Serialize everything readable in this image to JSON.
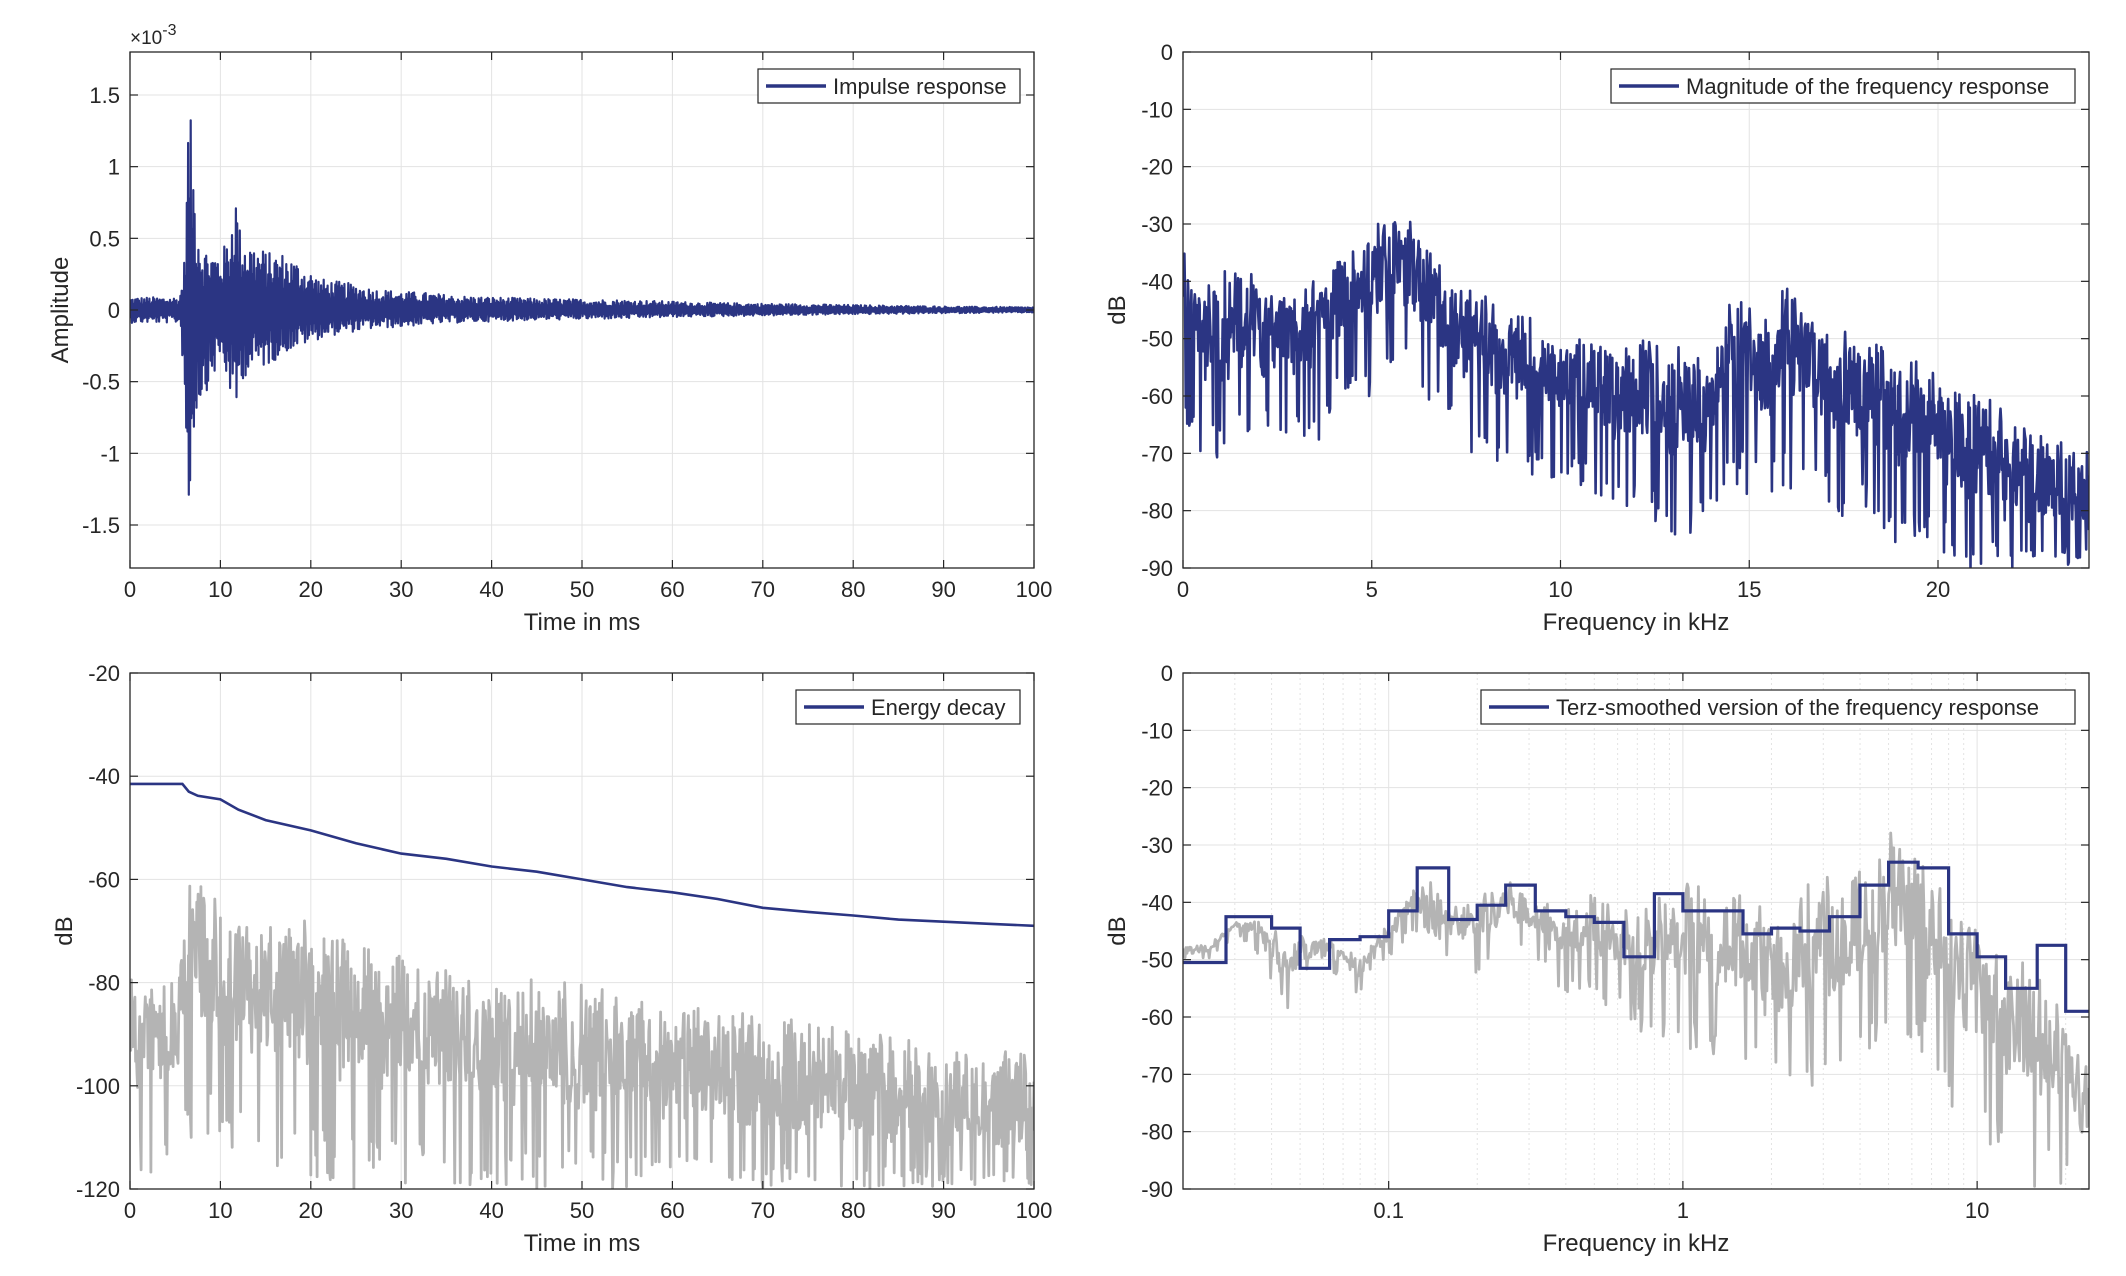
{
  "figure": {
    "colors": {
      "series_main": "#2b3583",
      "series_gray": "#b4b4b4",
      "grid": "#e3e3e3",
      "axis": "#262626",
      "background": "#ffffff"
    }
  },
  "chart_data": [
    {
      "id": "impulse",
      "type": "line",
      "title": "",
      "xlabel": "Time in ms",
      "ylabel": "Amplitude",
      "exponent_label": "×10",
      "exponent_power": "-3",
      "xlim": [
        0,
        100
      ],
      "ylim": [
        -1.8,
        1.8
      ],
      "xscale": "linear",
      "xticks": [
        0,
        10,
        20,
        30,
        40,
        50,
        60,
        70,
        80,
        90,
        100
      ],
      "xticklabels": [
        "0",
        "10",
        "20",
        "30",
        "40",
        "50",
        "60",
        "70",
        "80",
        "90",
        "100"
      ],
      "yticks": [
        -1.5,
        -1,
        -0.5,
        0,
        0.5,
        1,
        1.5
      ],
      "yticklabels": [
        "-1.5",
        "-1",
        "-0.5",
        "0",
        "0.5",
        "1",
        "1.5"
      ],
      "grid": true,
      "legend_position": "top-right",
      "legend": [
        "Impulse response"
      ],
      "series": [
        {
          "name": "Impulse response",
          "color": "#2b3583",
          "style": "envelope",
          "x": [
            0,
            5.5,
            6.0,
            6.3,
            6.5,
            6.8,
            7.3,
            8.0,
            9.0,
            10.0,
            11.0,
            11.6,
            12.2,
            13.0,
            14.0,
            15.5,
            17.0,
            19.0,
            21.0,
            23.0,
            25.0,
            27.0,
            30.0,
            33.0,
            36.0,
            40.0,
            45.0,
            50.0,
            55.0,
            60.0,
            65.0,
            70.0,
            75.0,
            80.0,
            85.0,
            90.0,
            95.0,
            100.0
          ],
          "upper": [
            0.09,
            0.09,
            0.35,
            1.0,
            1.52,
            1.25,
            0.78,
            0.45,
            0.42,
            0.4,
            0.52,
            0.9,
            0.55,
            0.5,
            0.45,
            0.4,
            0.4,
            0.32,
            0.22,
            0.2,
            0.18,
            0.15,
            0.13,
            0.12,
            0.1,
            0.09,
            0.08,
            0.075,
            0.07,
            0.06,
            0.05,
            0.045,
            0.04,
            0.035,
            0.03,
            0.025,
            0.022,
            0.02
          ],
          "lower": [
            -0.09,
            -0.09,
            -0.5,
            -1.3,
            -1.62,
            -1.1,
            -0.72,
            -0.62,
            -0.5,
            -0.35,
            -0.55,
            -0.86,
            -0.5,
            -0.45,
            -0.42,
            -0.38,
            -0.3,
            -0.25,
            -0.2,
            -0.17,
            -0.15,
            -0.13,
            -0.12,
            -0.1,
            -0.09,
            -0.08,
            -0.07,
            -0.065,
            -0.06,
            -0.05,
            -0.045,
            -0.04,
            -0.035,
            -0.03,
            -0.027,
            -0.023,
            -0.02,
            -0.018
          ]
        }
      ]
    },
    {
      "id": "magnitude",
      "type": "line",
      "title": "",
      "xlabel": "Frequency in kHz",
      "ylabel": "dB",
      "xlim": [
        0,
        24
      ],
      "ylim": [
        -90,
        0
      ],
      "xscale": "linear",
      "xticks": [
        0,
        5,
        10,
        15,
        20
      ],
      "xticklabels": [
        "0",
        "5",
        "10",
        "15",
        "20"
      ],
      "yticks": [
        0,
        -10,
        -20,
        -30,
        -40,
        -50,
        -60,
        -70,
        -80,
        -90
      ],
      "yticklabels": [
        "0",
        "-10",
        "-20",
        "-30",
        "-40",
        "-50",
        "-60",
        "-70",
        "-80",
        "-90"
      ],
      "grid": true,
      "legend_position": "top-right",
      "legend": [
        "Magnitude of the frequency response"
      ],
      "series": [
        {
          "name": "Magnitude of the frequency response",
          "color": "#2b3583",
          "style": "noisy-trace",
          "x": [
            0,
            0.5,
            1.0,
            1.5,
            2.0,
            2.5,
            3.0,
            3.5,
            4.0,
            4.5,
            5.0,
            5.5,
            6.0,
            6.5,
            7.0,
            7.5,
            8.0,
            8.5,
            9.0,
            9.5,
            10.0,
            10.5,
            11.0,
            11.5,
            12.0,
            12.5,
            13.0,
            13.5,
            14.0,
            14.5,
            15.0,
            15.5,
            16.0,
            16.5,
            17.0,
            17.5,
            18.0,
            18.5,
            19.0,
            19.5,
            20.0,
            20.5,
            21.0,
            21.5,
            22.0,
            22.5,
            23.0,
            23.5,
            24.0
          ],
          "upper": [
            -33,
            -40,
            -38,
            -37,
            -38,
            -40,
            -42,
            -40,
            -35,
            -33,
            -31,
            -27,
            -30,
            -33,
            -38,
            -40,
            -43,
            -45,
            -44,
            -47,
            -50,
            -50,
            -49,
            -52,
            -48,
            -50,
            -52,
            -52,
            -55,
            -42,
            -43,
            -45,
            -41,
            -43,
            -44,
            -48,
            -48,
            -50,
            -54,
            -52,
            -56,
            -57,
            -59,
            -62,
            -63,
            -65,
            -66,
            -67,
            -70
          ],
          "lower": [
            -66,
            -70,
            -72,
            -68,
            -70,
            -66,
            -68,
            -70,
            -62,
            -60,
            -62,
            -55,
            -58,
            -63,
            -66,
            -70,
            -72,
            -73,
            -74,
            -74,
            -76,
            -76,
            -78,
            -80,
            -80,
            -82,
            -85,
            -85,
            -82,
            -75,
            -78,
            -80,
            -76,
            -78,
            -79,
            -82,
            -82,
            -84,
            -86,
            -86,
            -88,
            -90,
            -90,
            -90,
            -90,
            -90,
            -90,
            -90,
            -90
          ],
          "mid": [
            -48,
            -54,
            -55,
            -52,
            -54,
            -53,
            -55,
            -54,
            -48,
            -46,
            -44,
            -40,
            -43,
            -47,
            -51,
            -54,
            -57,
            -58,
            -58,
            -60,
            -62,
            -62,
            -63,
            -65,
            -63,
            -65,
            -68,
            -68,
            -68,
            -57,
            -59,
            -61,
            -57,
            -59,
            -60,
            -64,
            -64,
            -66,
            -70,
            -68,
            -71,
            -73,
            -76,
            -78,
            -80,
            -80,
            -80,
            -80,
            -82
          ]
        }
      ]
    },
    {
      "id": "energy",
      "type": "line",
      "title": "",
      "xlabel": "Time in ms",
      "ylabel": "dB",
      "xlim": [
        0,
        100
      ],
      "ylim": [
        -120,
        -20
      ],
      "xscale": "linear",
      "xticks": [
        0,
        10,
        20,
        30,
        40,
        50,
        60,
        70,
        80,
        90,
        100
      ],
      "xticklabels": [
        "0",
        "10",
        "20",
        "30",
        "40",
        "50",
        "60",
        "70",
        "80",
        "90",
        "100"
      ],
      "yticks": [
        -20,
        -40,
        -60,
        -80,
        -100,
        -120
      ],
      "yticklabels": [
        "-20",
        "-40",
        "-60",
        "-80",
        "-100",
        "-120"
      ],
      "grid": true,
      "legend_position": "top-right",
      "legend": [
        "Energy decay"
      ],
      "series": [
        {
          "name": "Energy decay",
          "color": "#2b3583",
          "style": "line",
          "x": [
            0,
            5.8,
            6.5,
            7.5,
            10,
            12,
            15,
            20,
            25,
            30,
            35,
            40,
            45,
            50,
            55,
            60,
            65,
            70,
            75,
            80,
            85,
            90,
            95,
            100
          ],
          "y": [
            -41.5,
            -41.5,
            -43.0,
            -43.8,
            -44.5,
            -46.5,
            -48.5,
            -50.5,
            -53.0,
            -55.0,
            -56.0,
            -57.5,
            -58.5,
            -60.0,
            -61.5,
            -62.5,
            -63.8,
            -65.5,
            -66.3,
            -67.0,
            -67.8,
            -68.2,
            -68.6,
            -69.0
          ]
        },
        {
          "name": "",
          "color": "#b4b4b4",
          "style": "noisy-trace",
          "x": [
            0,
            5,
            6.0,
            6.5,
            8,
            10,
            15,
            20,
            25,
            30,
            35,
            40,
            45,
            50,
            55,
            60,
            65,
            70,
            75,
            80,
            85,
            90,
            95,
            100
          ],
          "upper": [
            -80,
            -80,
            -70,
            -56,
            -62,
            -65,
            -68,
            -68,
            -72,
            -75,
            -76,
            -78,
            -80,
            -80,
            -82,
            -83,
            -85,
            -86,
            -88,
            -90,
            -91,
            -93,
            -94,
            -94
          ],
          "lower": [
            -118,
            -118,
            -112,
            -110,
            -110,
            -112,
            -116,
            -118,
            -120,
            -120,
            -120,
            -120,
            -120,
            -120,
            -120,
            -120,
            -120,
            -120,
            -120,
            -120,
            -120,
            -120,
            -120,
            -120
          ],
          "mid": [
            -95,
            -95,
            -88,
            -82,
            -84,
            -86,
            -89,
            -91,
            -94,
            -96,
            -97,
            -99,
            -100,
            -101,
            -102,
            -103,
            -104,
            -106,
            -107,
            -108,
            -109,
            -110,
            -110,
            -111
          ]
        }
      ]
    },
    {
      "id": "terz",
      "type": "line",
      "title": "",
      "xlabel": "Frequency in kHz",
      "ylabel": "dB",
      "xlim": [
        0.02,
        24
      ],
      "ylim": [
        -90,
        0
      ],
      "xscale": "log",
      "xticks": [
        0.1,
        1,
        10
      ],
      "xticklabels": [
        "0.1",
        "1",
        "10"
      ],
      "yticks": [
        0,
        -10,
        -20,
        -30,
        -40,
        -50,
        -60,
        -70,
        -80,
        -90
      ],
      "yticklabels": [
        "0",
        "-10",
        "-20",
        "-30",
        "-40",
        "-50",
        "-60",
        "-70",
        "-80",
        "-90"
      ],
      "grid": true,
      "legend_position": "top-right",
      "legend": [
        "Terz-smoothed version of the frequency response"
      ],
      "series": [
        {
          "name": "",
          "color": "#b4b4b4",
          "style": "noisy-trace",
          "x": [
            0.02,
            0.025,
            0.03,
            0.035,
            0.04,
            0.045,
            0.05,
            0.06,
            0.07,
            0.08,
            0.09,
            0.1,
            0.12,
            0.14,
            0.16,
            0.18,
            0.2,
            0.25,
            0.3,
            0.35,
            0.4,
            0.5,
            0.6,
            0.7,
            0.8,
            1.0,
            1.2,
            1.5,
            2.0,
            2.5,
            3.0,
            3.5,
            4.0,
            4.5,
            5.0,
            5.5,
            6.0,
            7.0,
            8.0,
            9.0,
            10.0,
            12.0,
            14.0,
            16.0,
            18.0,
            20.0,
            22.0,
            24.0
          ],
          "upper": [
            -48,
            -47,
            -43,
            -43,
            -44,
            -48,
            -46,
            -46,
            -47,
            -50,
            -46,
            -44,
            -38,
            -36,
            -41,
            -40,
            -38,
            -36,
            -38,
            -40,
            -41,
            -38,
            -42,
            -38,
            -39,
            -36,
            -38,
            -38,
            -42,
            -38,
            -36,
            -36,
            -34,
            -30,
            -27,
            -25,
            -28,
            -33,
            -38,
            -40,
            -42,
            -45,
            -48,
            -50,
            -55,
            -60,
            -65,
            -70
          ],
          "lower": [
            -50,
            -50,
            -46,
            -48,
            -55,
            -59,
            -53,
            -52,
            -54,
            -57,
            -50,
            -50,
            -45,
            -46,
            -50,
            -52,
            -55,
            -48,
            -48,
            -54,
            -56,
            -57,
            -60,
            -62,
            -65,
            -66,
            -68,
            -70,
            -72,
            -75,
            -72,
            -70,
            -68,
            -68,
            -65,
            -62,
            -64,
            -70,
            -76,
            -80,
            -80,
            -85,
            -88,
            -90,
            -90,
            -90,
            -90,
            -90
          ],
          "mid": [
            -49,
            -48,
            -44,
            -45,
            -49,
            -53,
            -50,
            -49,
            -50,
            -53,
            -48,
            -47,
            -42,
            -41,
            -45,
            -46,
            -46,
            -42,
            -43,
            -47,
            -48,
            -47,
            -51,
            -50,
            -52,
            -51,
            -53,
            -54,
            -57,
            -56,
            -54,
            -53,
            -51,
            -49,
            -46,
            -43,
            -46,
            -51,
            -57,
            -60,
            -61,
            -65,
            -68,
            -70,
            -72,
            -75,
            -78,
            -80
          ]
        },
        {
          "name": "Terz-smoothed version of the frequency response",
          "color": "#2b3583",
          "style": "step",
          "edges": [
            0.02,
            0.028,
            0.04,
            0.05,
            0.063,
            0.08,
            0.1,
            0.125,
            0.16,
            0.2,
            0.25,
            0.315,
            0.4,
            0.5,
            0.63,
            0.8,
            1.0,
            1.25,
            1.6,
            2.0,
            2.5,
            3.15,
            4.0,
            5.0,
            6.3,
            8.0,
            10.0,
            12.5,
            16.0,
            20.0,
            24.0
          ],
          "values": [
            -50.5,
            -42.5,
            -44.5,
            -51.5,
            -46.5,
            -46.0,
            -41.5,
            -34.0,
            -43.0,
            -40.5,
            -37.0,
            -41.5,
            -42.5,
            -43.5,
            -49.5,
            -38.5,
            -41.5,
            -41.5,
            -45.5,
            -44.5,
            -45.0,
            -42.5,
            -37.0,
            -33.0,
            -34.0,
            -45.5,
            -49.5,
            -55.0,
            -47.5,
            -59.0
          ]
        }
      ]
    }
  ]
}
